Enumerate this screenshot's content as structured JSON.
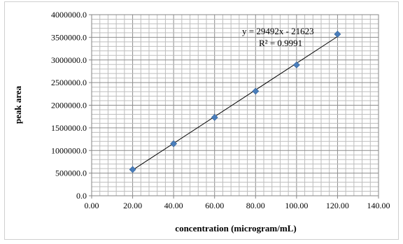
{
  "chart_data": {
    "type": "scatter",
    "xlabel": "concentration  (microgram/mL)",
    "ylabel": "peak area",
    "xlim": [
      0,
      140
    ],
    "ylim": [
      0,
      4000000
    ],
    "x_ticks": [
      "0.00",
      "20.00",
      "40.00",
      "60.00",
      "80.00",
      "100.00",
      "120.00",
      "140.00"
    ],
    "y_ticks": [
      "0.0",
      "500000.0",
      "1000000.0",
      "1500000.0",
      "2000000.0",
      "2500000.0",
      "3000000.0",
      "3500000.0",
      "4000000.0"
    ],
    "grid": true,
    "series": [
      {
        "x": [
          20,
          40,
          60,
          80,
          100,
          120
        ],
        "y": [
          580000,
          1150000,
          1730000,
          2310000,
          2890000,
          3570000
        ],
        "marker": "diamond",
        "color": "#4a7ebb"
      }
    ],
    "trendline": {
      "type": "linear",
      "slope": 29492,
      "intercept": -21623,
      "color": "#000000"
    },
    "annotations": {
      "equation": "y = 29492x  - 21623",
      "r_squared": "R² = 0.9991"
    }
  }
}
